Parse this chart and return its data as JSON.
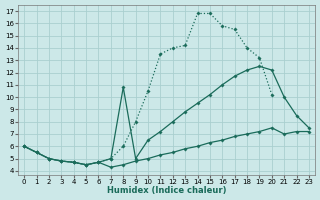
{
  "bg_color": "#cce8e8",
  "grid_color": "#aacfcf",
  "line_color": "#1a6b5a",
  "xlabel": "Humidex (Indice chaleur)",
  "xlim": [
    -0.5,
    23.5
  ],
  "ylim": [
    3.7,
    17.5
  ],
  "xticks": [
    0,
    1,
    2,
    3,
    4,
    5,
    6,
    7,
    8,
    9,
    10,
    11,
    12,
    13,
    14,
    15,
    16,
    17,
    18,
    19,
    20,
    21,
    22,
    23
  ],
  "yticks": [
    4,
    5,
    6,
    7,
    8,
    9,
    10,
    11,
    12,
    13,
    14,
    15,
    16,
    17
  ],
  "line_top_x": [
    0,
    1,
    2,
    3,
    4,
    5,
    6,
    7,
    8,
    9,
    10,
    11,
    12,
    13,
    14,
    15,
    16,
    17,
    18,
    19,
    20,
    21,
    22,
    23
  ],
  "line_top_y": [
    6.0,
    5.5,
    5.0,
    4.8,
    4.7,
    4.5,
    4.7,
    5.0,
    6.0,
    8.0,
    10.5,
    13.5,
    14.0,
    14.2,
    16.8,
    16.8,
    15.8,
    15.5,
    14.0,
    13.2,
    10.2,
    null,
    null,
    null
  ],
  "line_mid_x": [
    0,
    1,
    2,
    3,
    4,
    5,
    6,
    7,
    8,
    9,
    10,
    11,
    12,
    13,
    14,
    15,
    16,
    17,
    18,
    19,
    20,
    21,
    22,
    23
  ],
  "line_mid_y": [
    6.0,
    5.5,
    5.0,
    4.8,
    4.7,
    4.5,
    4.7,
    5.0,
    10.8,
    5.0,
    6.5,
    7.2,
    8.0,
    8.8,
    9.5,
    10.2,
    11.0,
    11.7,
    12.2,
    12.5,
    12.2,
    10.0,
    8.5,
    7.5
  ],
  "line_bot_x": [
    0,
    1,
    2,
    3,
    4,
    5,
    6,
    7,
    8,
    9,
    10,
    11,
    12,
    13,
    14,
    15,
    16,
    17,
    18,
    19,
    20,
    21,
    22,
    23
  ],
  "line_bot_y": [
    6.0,
    5.5,
    5.0,
    4.8,
    4.7,
    4.5,
    4.7,
    4.3,
    4.5,
    4.8,
    5.0,
    5.3,
    5.5,
    5.8,
    6.0,
    6.3,
    6.5,
    6.8,
    7.0,
    7.2,
    7.5,
    7.0,
    7.2,
    7.2
  ]
}
